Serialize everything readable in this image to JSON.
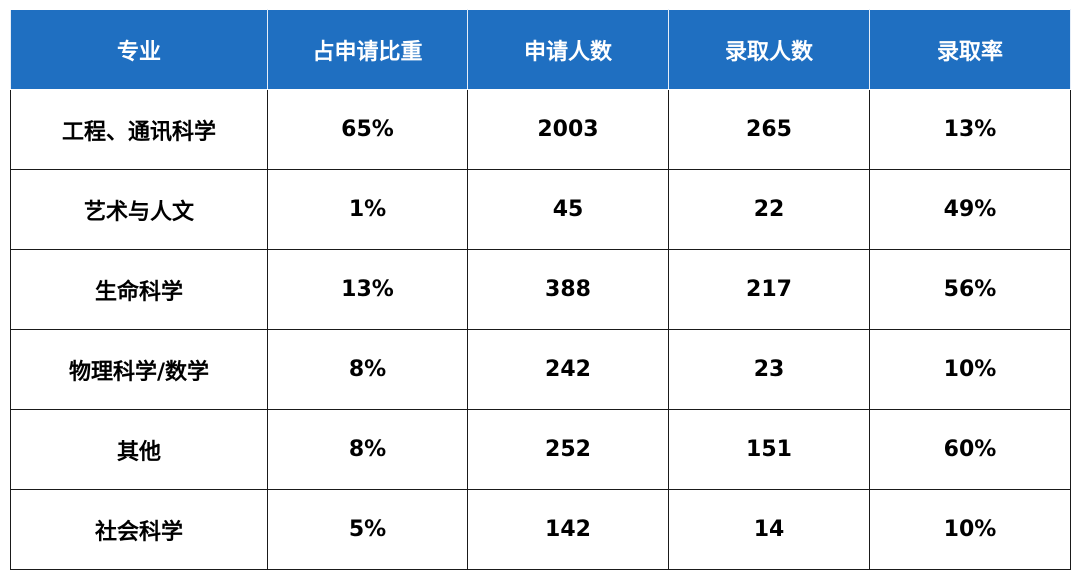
{
  "table": {
    "headers": [
      "专业",
      "占申请比重",
      "申请人数",
      "录取人数",
      "录取率"
    ],
    "rows": [
      [
        "工程、通讯科学",
        "65%",
        "2003",
        "265",
        "13%"
      ],
      [
        "艺术与人文",
        "1%",
        "45",
        "22",
        "49%"
      ],
      [
        "生命科学",
        "13%",
        "388",
        "217",
        "56%"
      ],
      [
        "物理科学/数学",
        "8%",
        "242",
        "23",
        "10%"
      ],
      [
        "其他",
        "8%",
        "252",
        "151",
        "60%"
      ],
      [
        "社会科学",
        "5%",
        "142",
        "14",
        "10%"
      ]
    ]
  },
  "colors": {
    "header_bg": "#1f6fc1",
    "header_text": "#ffffff",
    "border": "#1a1a1a"
  }
}
